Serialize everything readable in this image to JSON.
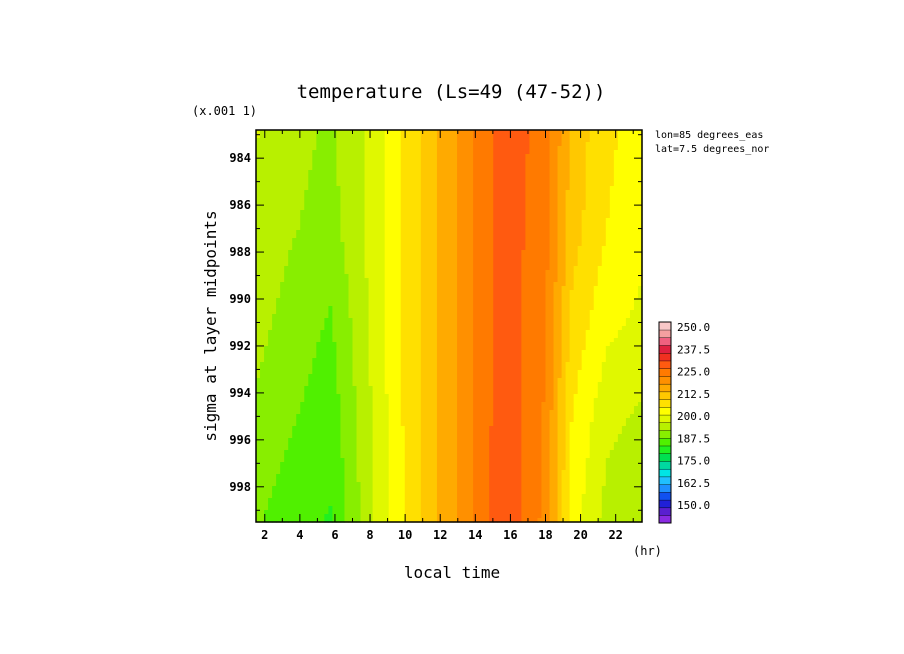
{
  "chart_data": {
    "type": "heatmap",
    "title": "temperature (Ls=49 (47-52))",
    "xlabel": "local time",
    "x_unit": "(hr)",
    "ylabel": "sigma at layer midpoints",
    "y_multiplier": "(x.001 1)",
    "annotations": [
      "lon=85 degrees_eas",
      "lat=7.5 degrees_nor"
    ],
    "xlim": [
      1.5,
      23.5
    ],
    "ylim": [
      999.5,
      982.8
    ],
    "x_ticks": [
      2,
      4,
      6,
      8,
      10,
      12,
      14,
      16,
      18,
      20,
      22
    ],
    "y_ticks": [
      984,
      986,
      988,
      990,
      992,
      994,
      996,
      998
    ],
    "x": [
      1.5,
      3.5,
      5.75,
      7.5,
      10.5,
      13.5,
      15.75,
      18,
      19.5,
      21.5,
      23.5
    ],
    "y": [
      982.8,
      987,
      991,
      995,
      999.5
    ],
    "z": [
      [
        199,
        196,
        194,
        198,
        210,
        222,
        230,
        226,
        214,
        208,
        205
      ],
      [
        198,
        195,
        193,
        198,
        210,
        222,
        230,
        225,
        213,
        207,
        204
      ],
      [
        196,
        193,
        190,
        197,
        210,
        222,
        230,
        224,
        210,
        204,
        202
      ],
      [
        194,
        191,
        188,
        196,
        210,
        222,
        231,
        223,
        207,
        200,
        198
      ],
      [
        191,
        188,
        186,
        195,
        210,
        222,
        232,
        222,
        205,
        197,
        195
      ]
    ],
    "colorbar": {
      "labels": [
        "250.0",
        "237.5",
        "225.0",
        "212.5",
        "200.0",
        "187.5",
        "175.0",
        "162.5",
        "150.0"
      ],
      "min": 145,
      "max": 252.5,
      "colors": [
        "#8a2be2",
        "#5a1fd0",
        "#2020d8",
        "#1050f0",
        "#1e90ff",
        "#20c0ff",
        "#00e5e5",
        "#00d8a0",
        "#00e050",
        "#20f020",
        "#50f000",
        "#88ee00",
        "#b8f000",
        "#e0f800",
        "#ffff00",
        "#ffe000",
        "#ffc800",
        "#ffaa00",
        "#ff9000",
        "#ff7a00",
        "#ff5a10",
        "#f03020",
        "#e02040",
        "#f06080",
        "#f4a0a0",
        "#f8c8c8"
      ]
    }
  }
}
